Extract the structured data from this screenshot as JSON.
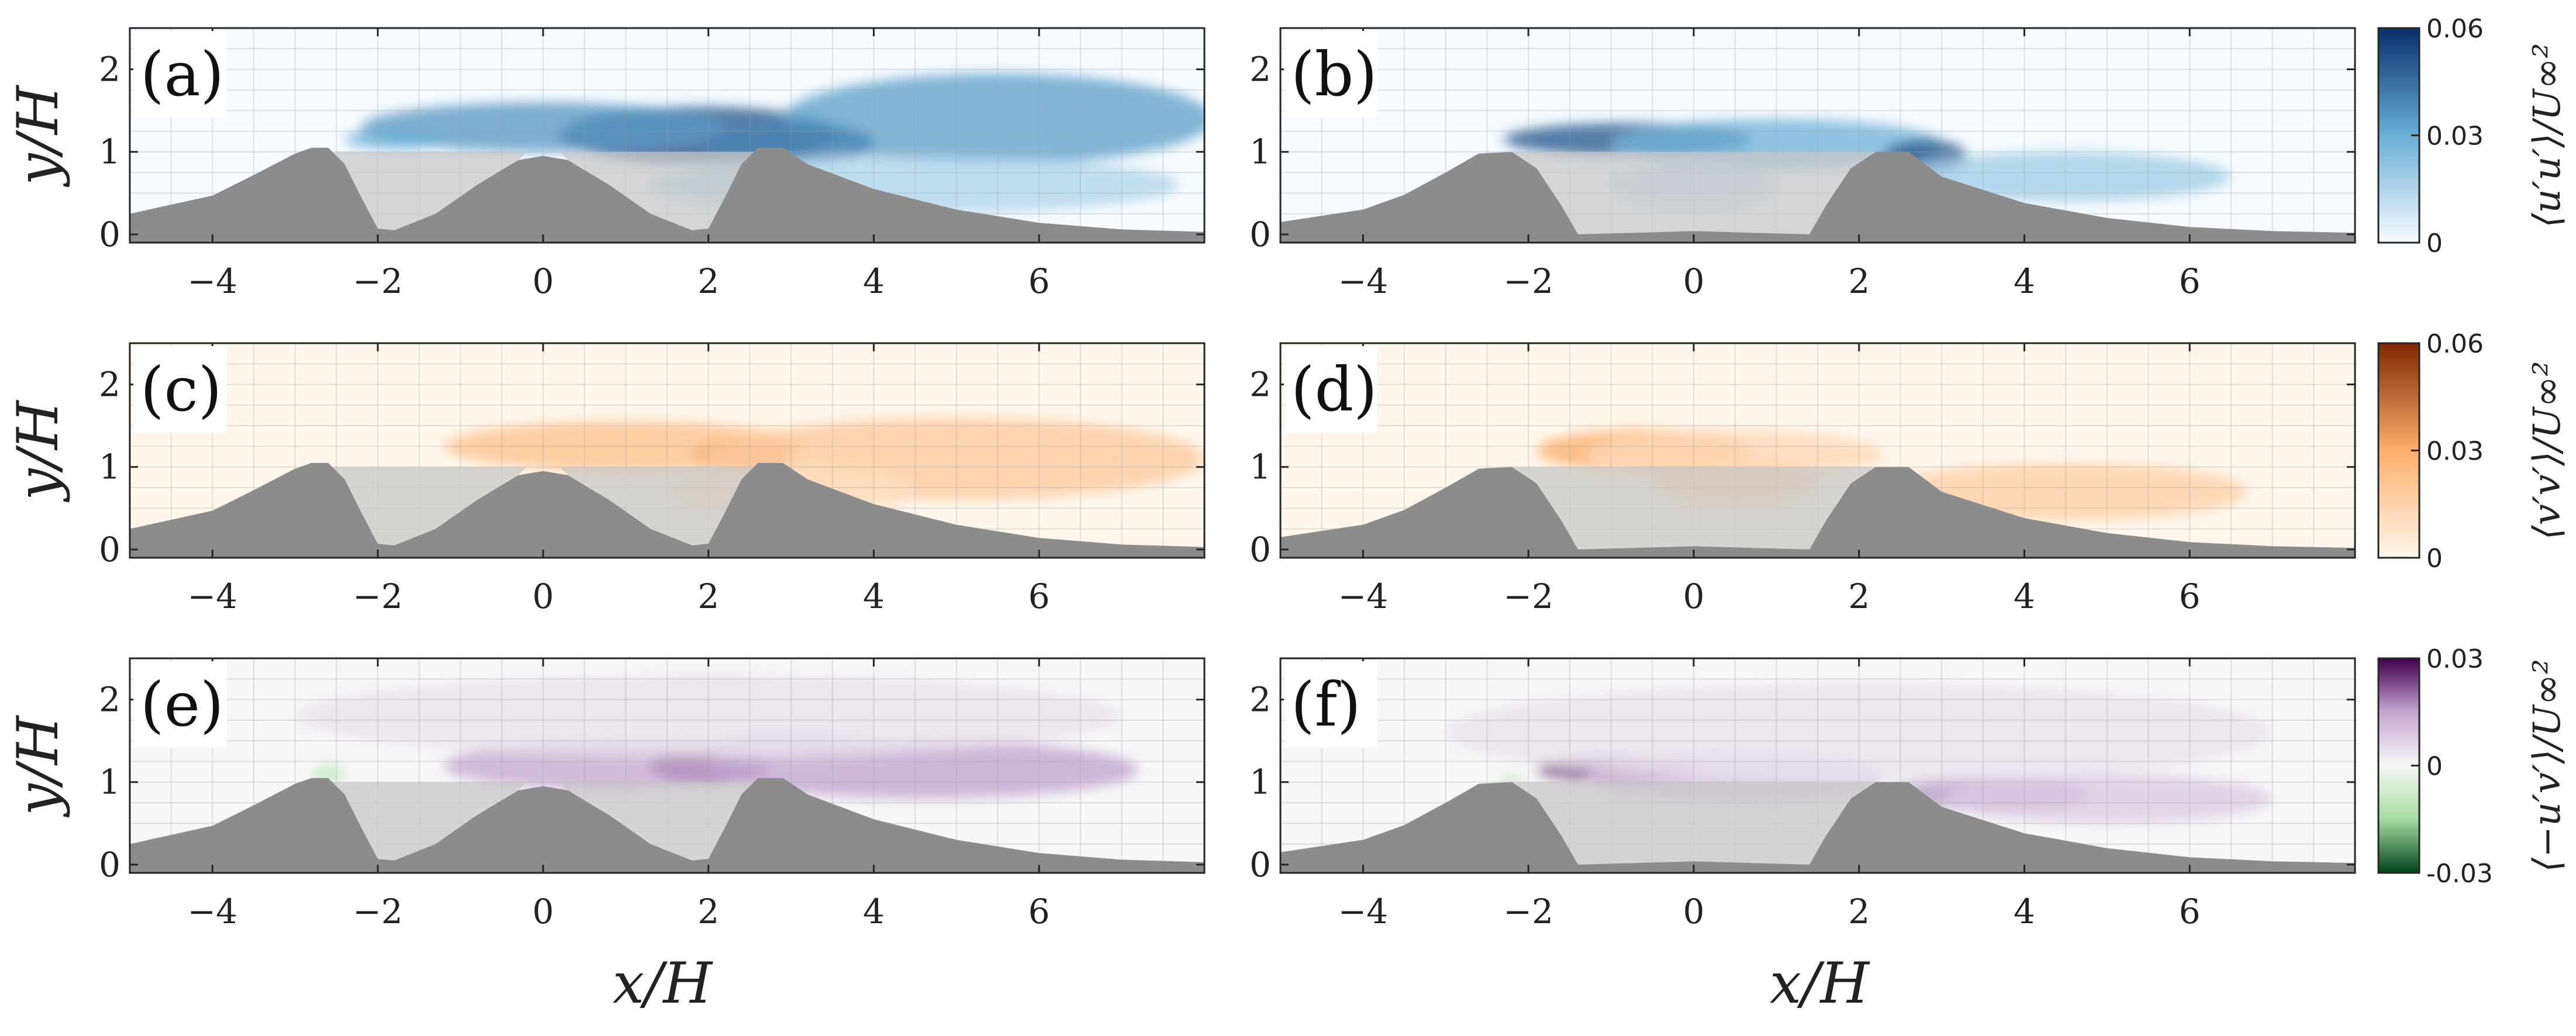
{
  "chart_data": {
    "type": "heatmap",
    "description_axes": {
      "xlabel": "x/H",
      "ylabel": "y/H",
      "xlim": [
        -5,
        8
      ],
      "ylim": [
        -0.1,
        2.5
      ],
      "xticks": [
        -4,
        -2,
        0,
        2,
        4,
        6
      ],
      "yticks": [
        0,
        1,
        2
      ],
      "grid": true
    },
    "rows": [
      {
        "quantity": "u'u'",
        "colorbar": {
          "label": "⟨u′u′⟩/U∞²",
          "ticks": [
            "0",
            "0.03",
            "0.06"
          ],
          "range": [
            0,
            0.06
          ],
          "colors": [
            "#f7fbff",
            "#6aaed6",
            "#08306b"
          ]
        },
        "panels": [
          {
            "label": "(a)",
            "case": "three-hill",
            "blobs": [
              {
                "x": 1.9,
                "y": 1.2,
                "rx": 1.7,
                "ry": 0.35,
                "value": 0.05
              },
              {
                "x": 0.0,
                "y": 1.3,
                "rx": 2.2,
                "ry": 0.3,
                "value": 0.035
              },
              {
                "x": 5.5,
                "y": 1.4,
                "rx": 2.6,
                "ry": 0.55,
                "value": 0.033
              },
              {
                "x": 3.0,
                "y": 1.1,
                "rx": 1.0,
                "ry": 0.25,
                "value": 0.04
              },
              {
                "x": 4.5,
                "y": 0.6,
                "rx": 3.2,
                "ry": 0.35,
                "value": 0.015
              },
              {
                "x": -1.8,
                "y": 1.15,
                "rx": 0.6,
                "ry": 0.12,
                "value": 0.03
              }
            ]
          },
          {
            "label": "(b)",
            "case": "two-hill",
            "blobs": [
              {
                "x": -0.8,
                "y": 1.15,
                "rx": 1.5,
                "ry": 0.2,
                "value": 0.05
              },
              {
                "x": 1.0,
                "y": 1.1,
                "rx": 2.0,
                "ry": 0.3,
                "value": 0.028
              },
              {
                "x": 2.8,
                "y": 0.95,
                "rx": 0.5,
                "ry": 0.2,
                "value": 0.05
              },
              {
                "x": 4.5,
                "y": 0.7,
                "rx": 2.0,
                "ry": 0.3,
                "value": 0.018
              },
              {
                "x": 0.0,
                "y": 0.6,
                "rx": 1.0,
                "ry": 0.3,
                "value": 0.012
              }
            ]
          }
        ]
      },
      {
        "quantity": "v'v'",
        "colorbar": {
          "label": "⟨v′v′⟩/U∞²",
          "ticks": [
            "0",
            "0.03",
            "0.06"
          ],
          "range": [
            0,
            0.06
          ],
          "colors": [
            "#fff7ec",
            "#fdae6b",
            "#7f2704"
          ]
        },
        "panels": [
          {
            "label": "(c)",
            "case": "three-hill",
            "blobs": [
              {
                "x": 2.4,
                "y": 1.15,
                "rx": 0.6,
                "ry": 0.2,
                "value": 0.04
              },
              {
                "x": 1.0,
                "y": 1.25,
                "rx": 2.2,
                "ry": 0.3,
                "value": 0.022
              },
              {
                "x": 5.0,
                "y": 1.1,
                "rx": 3.0,
                "ry": 0.5,
                "value": 0.018
              },
              {
                "x": 3.0,
                "y": 0.7,
                "rx": 1.5,
                "ry": 0.3,
                "value": 0.01
              }
            ]
          },
          {
            "label": "(d)",
            "case": "two-hill",
            "blobs": [
              {
                "x": -0.6,
                "y": 1.2,
                "rx": 1.3,
                "ry": 0.25,
                "value": 0.03
              },
              {
                "x": 0.5,
                "y": 0.85,
                "rx": 1.0,
                "ry": 0.3,
                "value": 0.018
              },
              {
                "x": 4.5,
                "y": 0.7,
                "rx": 2.2,
                "ry": 0.35,
                "value": 0.016
              },
              {
                "x": 0.5,
                "y": 1.15,
                "rx": 1.8,
                "ry": 0.3,
                "value": 0.012
              }
            ]
          }
        ]
      },
      {
        "quantity": "-u'v'",
        "colorbar": {
          "label": "⟨−u′v′⟩/U∞²",
          "ticks": [
            "-0.03",
            "0",
            "0.03"
          ],
          "range": [
            -0.03,
            0.03
          ],
          "colors": [
            "#00441b",
            "#a6dba0",
            "#f7f7f7",
            "#c2a5cf",
            "#40004b"
          ]
        },
        "panels": [
          {
            "label": "(e)",
            "case": "three-hill",
            "blobs": [
              {
                "x": 2.0,
                "y": 1.2,
                "rx": 0.7,
                "ry": 0.25,
                "value": 0.026
              },
              {
                "x": 0.8,
                "y": 1.2,
                "rx": 2.0,
                "ry": 0.3,
                "value": 0.014
              },
              {
                "x": 4.6,
                "y": 1.15,
                "rx": 2.6,
                "ry": 0.35,
                "value": 0.015
              },
              {
                "x": 3.0,
                "y": 1.4,
                "rx": 1.0,
                "ry": 0.2,
                "value": 0.01
              },
              {
                "x": 2.0,
                "y": 1.8,
                "rx": 5.0,
                "ry": 0.5,
                "value": 0.004
              },
              {
                "x": -2.6,
                "y": 1.1,
                "rx": 0.2,
                "ry": 0.08,
                "value": -0.012
              }
            ]
          },
          {
            "label": "(f)",
            "case": "two-hill",
            "blobs": [
              {
                "x": -0.9,
                "y": 1.15,
                "rx": 1.0,
                "ry": 0.15,
                "value": 0.024
              },
              {
                "x": 0.5,
                "y": 1.05,
                "rx": 1.8,
                "ry": 0.3,
                "value": 0.01
              },
              {
                "x": 3.6,
                "y": 0.85,
                "rx": 1.2,
                "ry": 0.2,
                "value": 0.016
              },
              {
                "x": 5.0,
                "y": 0.8,
                "rx": 2.0,
                "ry": 0.3,
                "value": 0.008
              },
              {
                "x": 2.0,
                "y": 1.6,
                "rx": 5.0,
                "ry": 0.6,
                "value": 0.004
              },
              {
                "x": -2.2,
                "y": 1.02,
                "rx": 0.15,
                "ry": 0.06,
                "value": -0.01
              }
            ]
          }
        ]
      }
    ],
    "geometry": {
      "three-hill": {
        "solid": [
          [
            -5,
            0.25
          ],
          [
            -4,
            0.47
          ],
          [
            -3.5,
            0.72
          ],
          [
            -3,
            0.98
          ],
          [
            -2.8,
            1.05
          ],
          [
            -2.6,
            1.05
          ],
          [
            -2.4,
            0.85
          ],
          [
            -2.2,
            0.45
          ],
          [
            -2.0,
            0.07
          ],
          [
            -1.8,
            0.05
          ],
          [
            -1.3,
            0.25
          ],
          [
            -0.8,
            0.6
          ],
          [
            -0.3,
            0.9
          ],
          [
            0,
            0.95
          ],
          [
            0.3,
            0.9
          ],
          [
            0.8,
            0.6
          ],
          [
            1.3,
            0.25
          ],
          [
            1.8,
            0.05
          ],
          [
            2.0,
            0.07
          ],
          [
            2.2,
            0.45
          ],
          [
            2.4,
            0.85
          ],
          [
            2.6,
            1.05
          ],
          [
            2.9,
            1.05
          ],
          [
            3.2,
            0.85
          ],
          [
            4,
            0.55
          ],
          [
            5,
            0.3
          ],
          [
            6,
            0.14
          ],
          [
            7,
            0.06
          ],
          [
            8,
            0.03
          ],
          [
            8,
            -0.1
          ],
          [
            -5,
            -0.1
          ]
        ],
        "cavities": [
          [
            [
              -2.6,
              1.0
            ],
            [
              -2.4,
              0.85
            ],
            [
              -2.2,
              0.45
            ],
            [
              -2.0,
              0.07
            ],
            [
              -1.8,
              0.05
            ],
            [
              -1.3,
              0.25
            ],
            [
              -0.8,
              0.6
            ],
            [
              -0.3,
              0.9
            ],
            [
              -0.2,
              1.0
            ]
          ],
          [
            [
              0.2,
              1.0
            ],
            [
              0.3,
              0.9
            ],
            [
              0.8,
              0.6
            ],
            [
              1.3,
              0.25
            ],
            [
              1.8,
              0.05
            ],
            [
              2.0,
              0.07
            ],
            [
              2.2,
              0.45
            ],
            [
              2.4,
              0.85
            ],
            [
              2.6,
              1.0
            ]
          ]
        ]
      },
      "two-hill": {
        "solid": [
          [
            -5,
            0.15
          ],
          [
            -4,
            0.3
          ],
          [
            -3.5,
            0.48
          ],
          [
            -3,
            0.75
          ],
          [
            -2.6,
            0.98
          ],
          [
            -2.2,
            1.0
          ],
          [
            -1.9,
            0.8
          ],
          [
            -1.6,
            0.35
          ],
          [
            -1.4,
            0.0
          ],
          [
            0,
            0.04
          ],
          [
            1.4,
            0.0
          ],
          [
            1.6,
            0.35
          ],
          [
            1.9,
            0.8
          ],
          [
            2.2,
            1.0
          ],
          [
            2.6,
            1.0
          ],
          [
            3,
            0.7
          ],
          [
            4,
            0.38
          ],
          [
            5,
            0.2
          ],
          [
            6,
            0.09
          ],
          [
            7,
            0.04
          ],
          [
            8,
            0.02
          ],
          [
            8,
            -0.1
          ],
          [
            -5,
            -0.1
          ]
        ],
        "cavities": [
          [
            [
              -2.2,
              1.0
            ],
            [
              -1.9,
              0.8
            ],
            [
              -1.6,
              0.35
            ],
            [
              -1.4,
              0.0
            ],
            [
              0,
              0.04
            ],
            [
              1.4,
              0.0
            ],
            [
              1.6,
              0.35
            ],
            [
              1.9,
              0.8
            ],
            [
              2.2,
              1.0
            ]
          ]
        ]
      }
    }
  }
}
